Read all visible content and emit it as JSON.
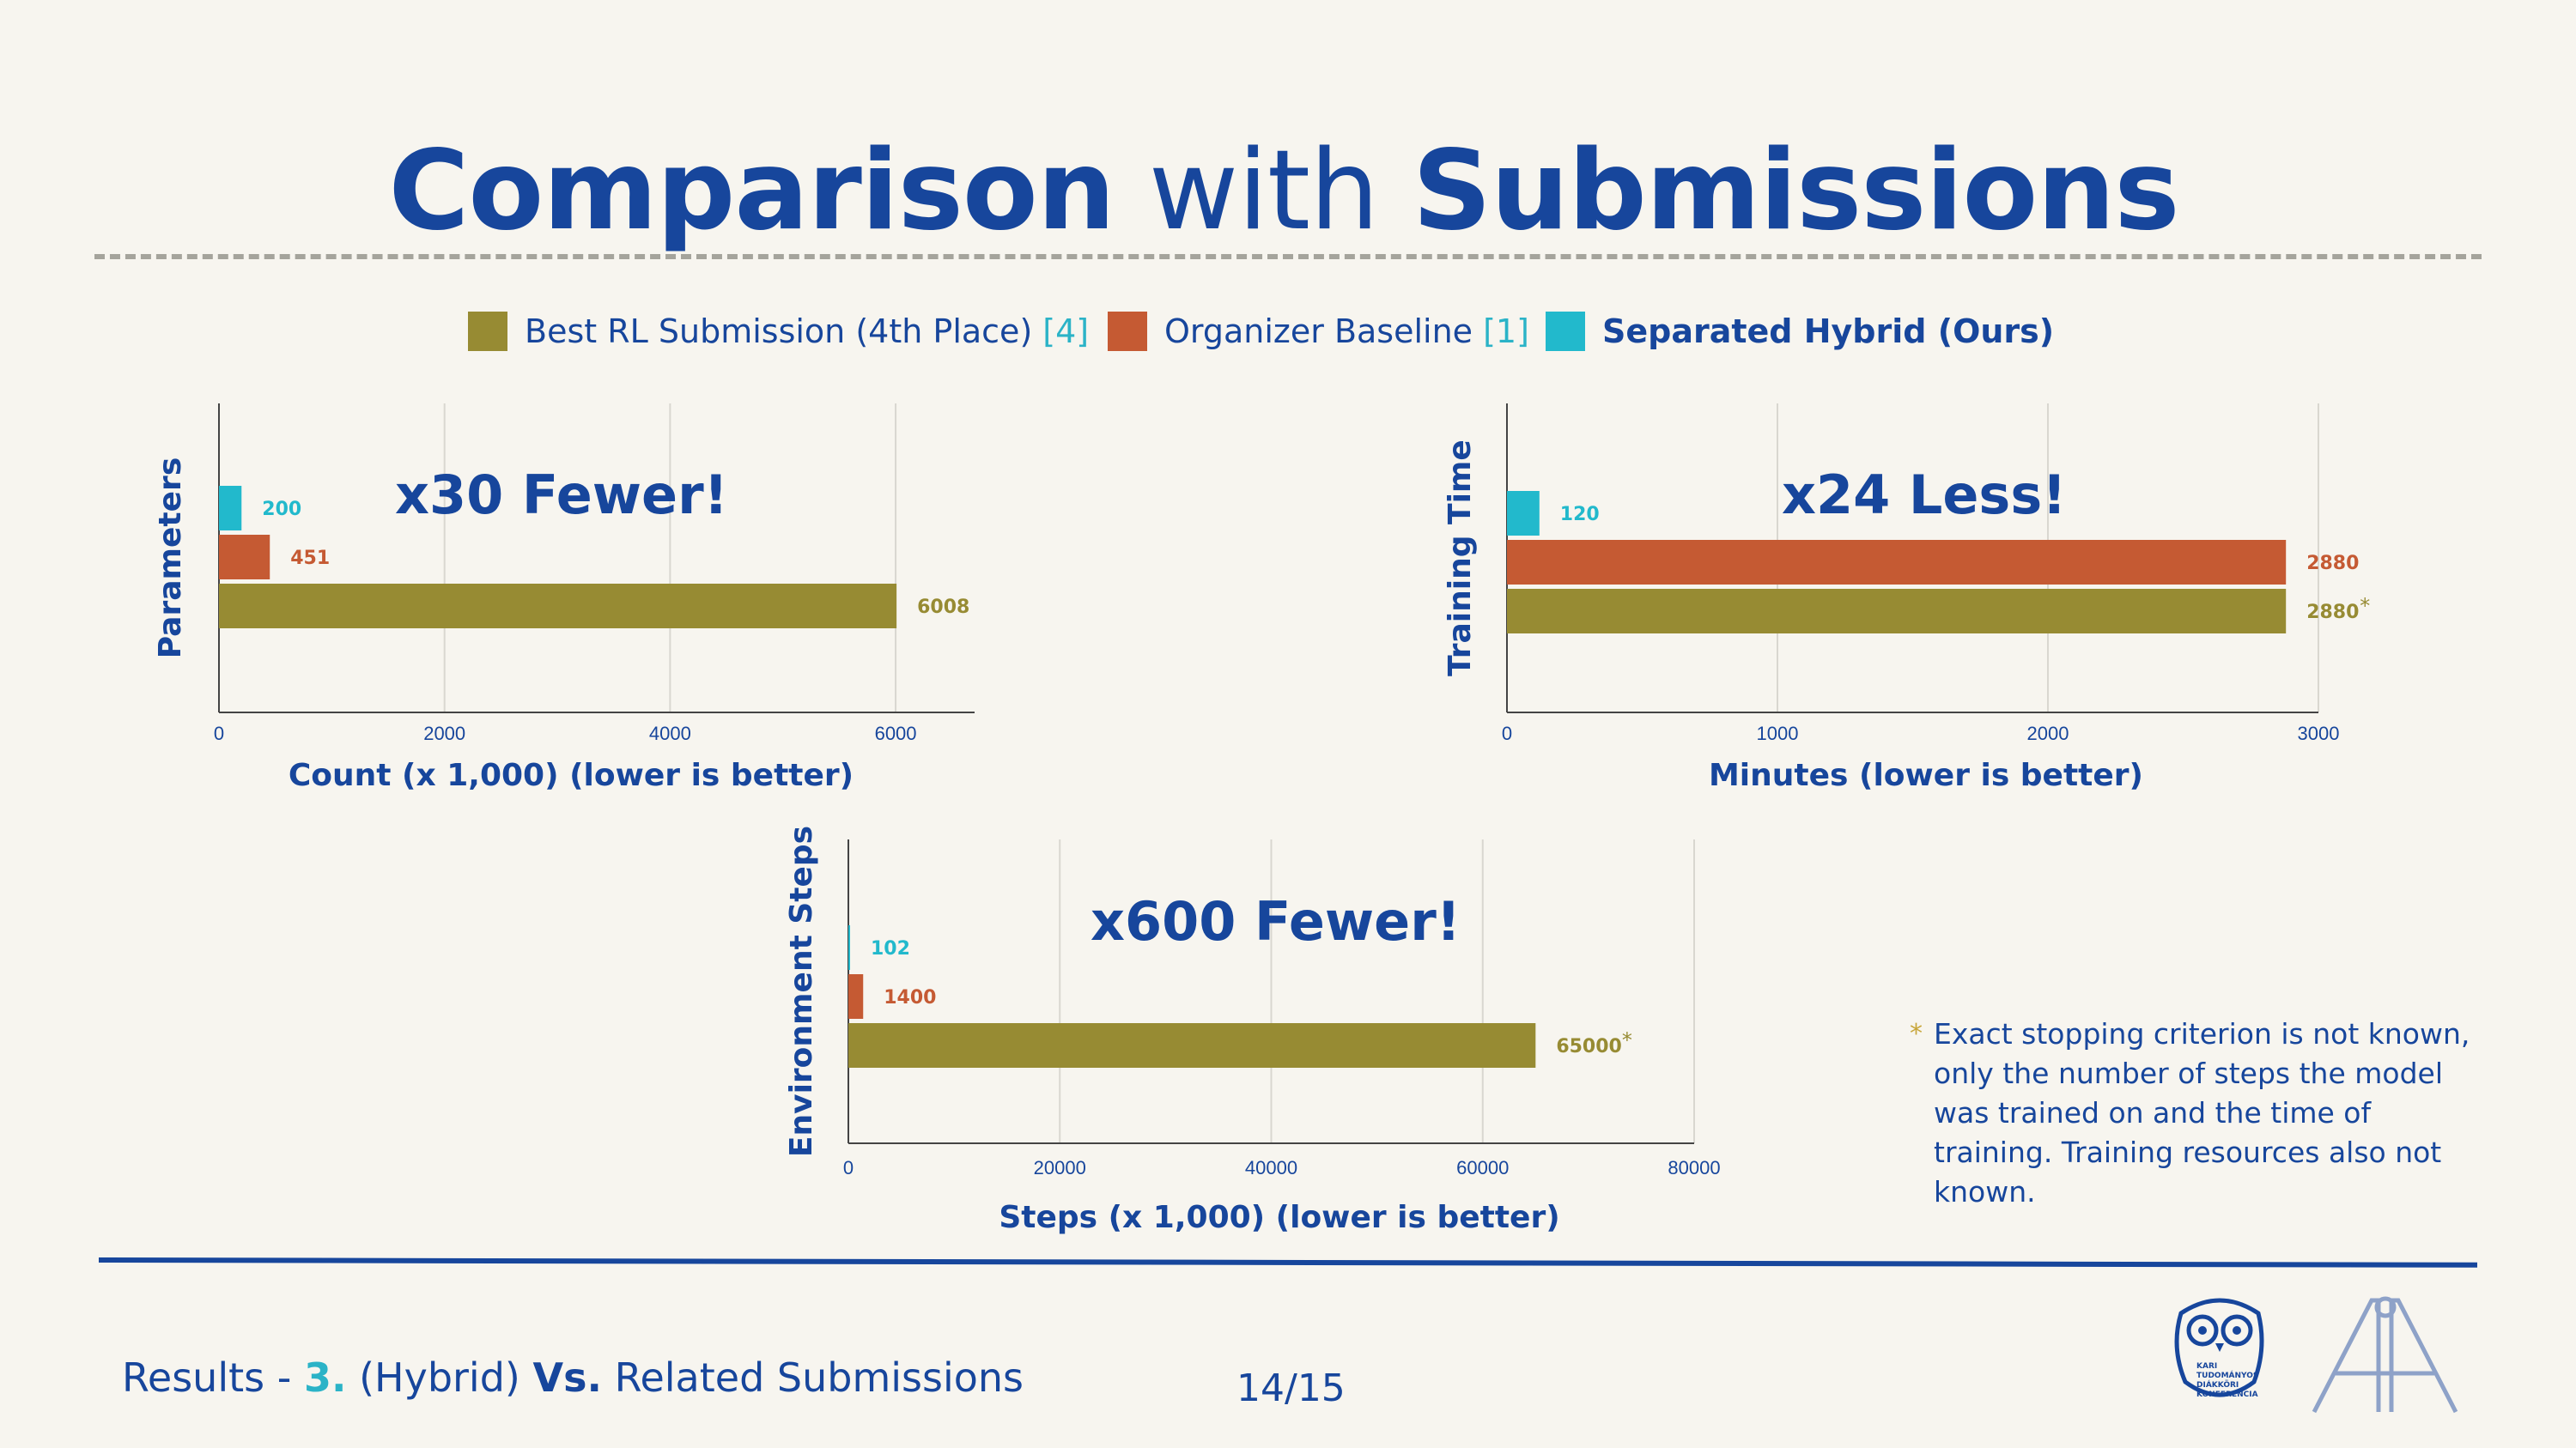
{
  "title": {
    "part1": "Comparison",
    "part2": "with",
    "part3": "Submissions"
  },
  "legend": [
    {
      "label": "Best RL Submission (4th Place)",
      "ref": "[4]",
      "color": "#978b33",
      "bold": false
    },
    {
      "label": "Organizer Baseline",
      "ref": "[1]",
      "color": "#c55a33",
      "bold": false
    },
    {
      "label": "Separated Hybrid (Ours)",
      "ref": "",
      "color": "#22b9cc",
      "bold": true
    }
  ],
  "colors": {
    "best": "#978b33",
    "baseline": "#c55a33",
    "ours": "#22b9cc",
    "text": "#17469c",
    "grid": "#d9d7d0"
  },
  "chart_data": [
    {
      "type": "bar",
      "orientation": "horizontal",
      "ylabel": "Parameters",
      "xlabel": "Count (x 1,000) (lower is better)",
      "xlim": [
        0,
        6700
      ],
      "xticks": [
        0,
        2000,
        4000,
        6000
      ],
      "annotation": "x30 Fewer!",
      "series": [
        {
          "name": "Separated Hybrid (Ours)",
          "value": 200,
          "label": "200",
          "star": false
        },
        {
          "name": "Organizer Baseline",
          "value": 451,
          "label": "451",
          "star": false
        },
        {
          "name": "Best RL Submission (4th Place)",
          "value": 6008,
          "label": "6008",
          "star": false
        }
      ]
    },
    {
      "type": "bar",
      "orientation": "horizontal",
      "ylabel": "Training Time",
      "xlabel": "Minutes (lower is better)",
      "xlim": [
        0,
        3000
      ],
      "xticks": [
        0,
        1000,
        2000,
        3000
      ],
      "annotation": "x24 Less!",
      "series": [
        {
          "name": "Separated Hybrid (Ours)",
          "value": 120,
          "label": "120",
          "star": false
        },
        {
          "name": "Organizer Baseline",
          "value": 2880,
          "label": "2880",
          "star": false
        },
        {
          "name": "Best RL Submission (4th Place)",
          "value": 2880,
          "label": "2880",
          "star": true
        }
      ]
    },
    {
      "type": "bar",
      "orientation": "horizontal",
      "ylabel": "Environment Steps",
      "xlabel": "Steps (x 1,000) (lower is better)",
      "xlim": [
        0,
        80000
      ],
      "xticks": [
        0,
        20000,
        40000,
        60000,
        80000
      ],
      "annotation": "x600 Fewer!",
      "series": [
        {
          "name": "Separated Hybrid (Ours)",
          "value": 102,
          "label": "102",
          "star": false
        },
        {
          "name": "Organizer Baseline",
          "value": 1400,
          "label": "1400",
          "star": false
        },
        {
          "name": "Best RL Submission (4th Place)",
          "value": 65000,
          "label": "65000",
          "star": true
        }
      ]
    }
  ],
  "footnote": {
    "star": "*",
    "text": "Exact stopping criterion is not known, only the number of steps the model was trained on and the time of training. Training resources also not known."
  },
  "footer": {
    "prefix": "Results -",
    "num": "3.",
    "middle": "(Hybrid)",
    "vs": "Vs.",
    "suffix": "Related Submissions",
    "page": "14/15"
  },
  "logos": [
    {
      "icon": "owl-logo-icon",
      "lines": [
        "KARI",
        "TUDOMÁNYOS",
        "DIÁKKÖRI",
        "KONFERENCIA"
      ]
    },
    {
      "icon": "ait-logo-icon"
    }
  ]
}
